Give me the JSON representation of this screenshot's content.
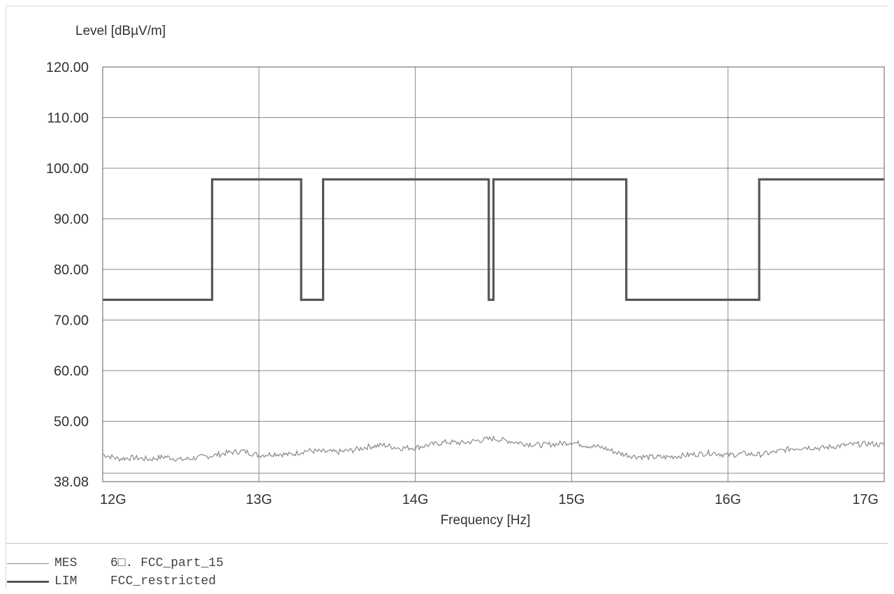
{
  "chart_data": {
    "type": "line",
    "ylabel": "Level [dBµV/m]",
    "xlabel": "Frequency [Hz]",
    "xlim": [
      12000000000,
      17000000000
    ],
    "ylim": [
      38.08,
      120.0
    ],
    "x_ticks": [
      {
        "value": 12000000000,
        "label": "12G"
      },
      {
        "value": 13000000000,
        "label": "13G"
      },
      {
        "value": 14000000000,
        "label": "14G"
      },
      {
        "value": 15000000000,
        "label": "15G"
      },
      {
        "value": 16000000000,
        "label": "16G"
      },
      {
        "value": 17000000000,
        "label": "17G"
      }
    ],
    "y_ticks": [
      {
        "value": 120.0,
        "label": "120.00"
      },
      {
        "value": 110.0,
        "label": "110.00"
      },
      {
        "value": 100.0,
        "label": "100.00"
      },
      {
        "value": 90.0,
        "label": "90.00"
      },
      {
        "value": 80.0,
        "label": "80.00"
      },
      {
        "value": 70.0,
        "label": "70.00"
      },
      {
        "value": 60.0,
        "label": "60.00"
      },
      {
        "value": 50.0,
        "label": "50.00"
      },
      {
        "value": 38.08,
        "label": "38.08"
      }
    ],
    "grid": true,
    "series": [
      {
        "name": "MES",
        "legend_label": "6□. FCC_part_15",
        "color": "#888888",
        "x": [
          12000000000,
          12100000000,
          12200000000,
          12300000000,
          12400000000,
          12500000000,
          12600000000,
          12700000000,
          12800000000,
          12900000000,
          13000000000,
          13100000000,
          13200000000,
          13300000000,
          13400000000,
          13500000000,
          13600000000,
          13700000000,
          13800000000,
          13900000000,
          14000000000,
          14100000000,
          14200000000,
          14300000000,
          14400000000,
          14500000000,
          14600000000,
          14700000000,
          14800000000,
          14900000000,
          15000000000,
          15100000000,
          15200000000,
          15300000000,
          15400000000,
          15500000000,
          15600000000,
          15700000000,
          15800000000,
          15900000000,
          16000000000,
          16100000000,
          16200000000,
          16300000000,
          16400000000,
          16500000000,
          16600000000,
          16700000000,
          16800000000,
          16900000000,
          17000000000
        ],
        "y": [
          43.5,
          42.6,
          42.8,
          42.5,
          43.0,
          42.4,
          42.8,
          43.2,
          43.8,
          44.1,
          43.3,
          43.6,
          43.4,
          44.2,
          44.0,
          43.9,
          44.3,
          45.0,
          45.3,
          44.7,
          44.8,
          45.4,
          45.9,
          45.7,
          46.2,
          46.6,
          46.1,
          45.6,
          45.3,
          45.5,
          45.9,
          45.2,
          44.8,
          43.7,
          43.1,
          42.9,
          42.9,
          43.2,
          43.5,
          43.8,
          43.3,
          43.6,
          43.4,
          43.9,
          44.6,
          44.9,
          44.7,
          45.1,
          45.4,
          45.6,
          45.3
        ]
      },
      {
        "name": "LIM",
        "legend_label": "FCC_restricted",
        "color": "#555555",
        "x": [
          12000000000,
          12700000000,
          12700000000,
          13270000000,
          13270000000,
          13410000000,
          13410000000,
          14470000000,
          14470000000,
          14500000000,
          14500000000,
          15350000000,
          15350000000,
          16200000000,
          16200000000,
          17000000000
        ],
        "y": [
          74.0,
          74.0,
          97.8,
          97.8,
          74.0,
          74.0,
          97.8,
          97.8,
          74.0,
          74.0,
          97.8,
          97.8,
          74.0,
          74.0,
          97.8,
          97.8
        ]
      }
    ]
  }
}
